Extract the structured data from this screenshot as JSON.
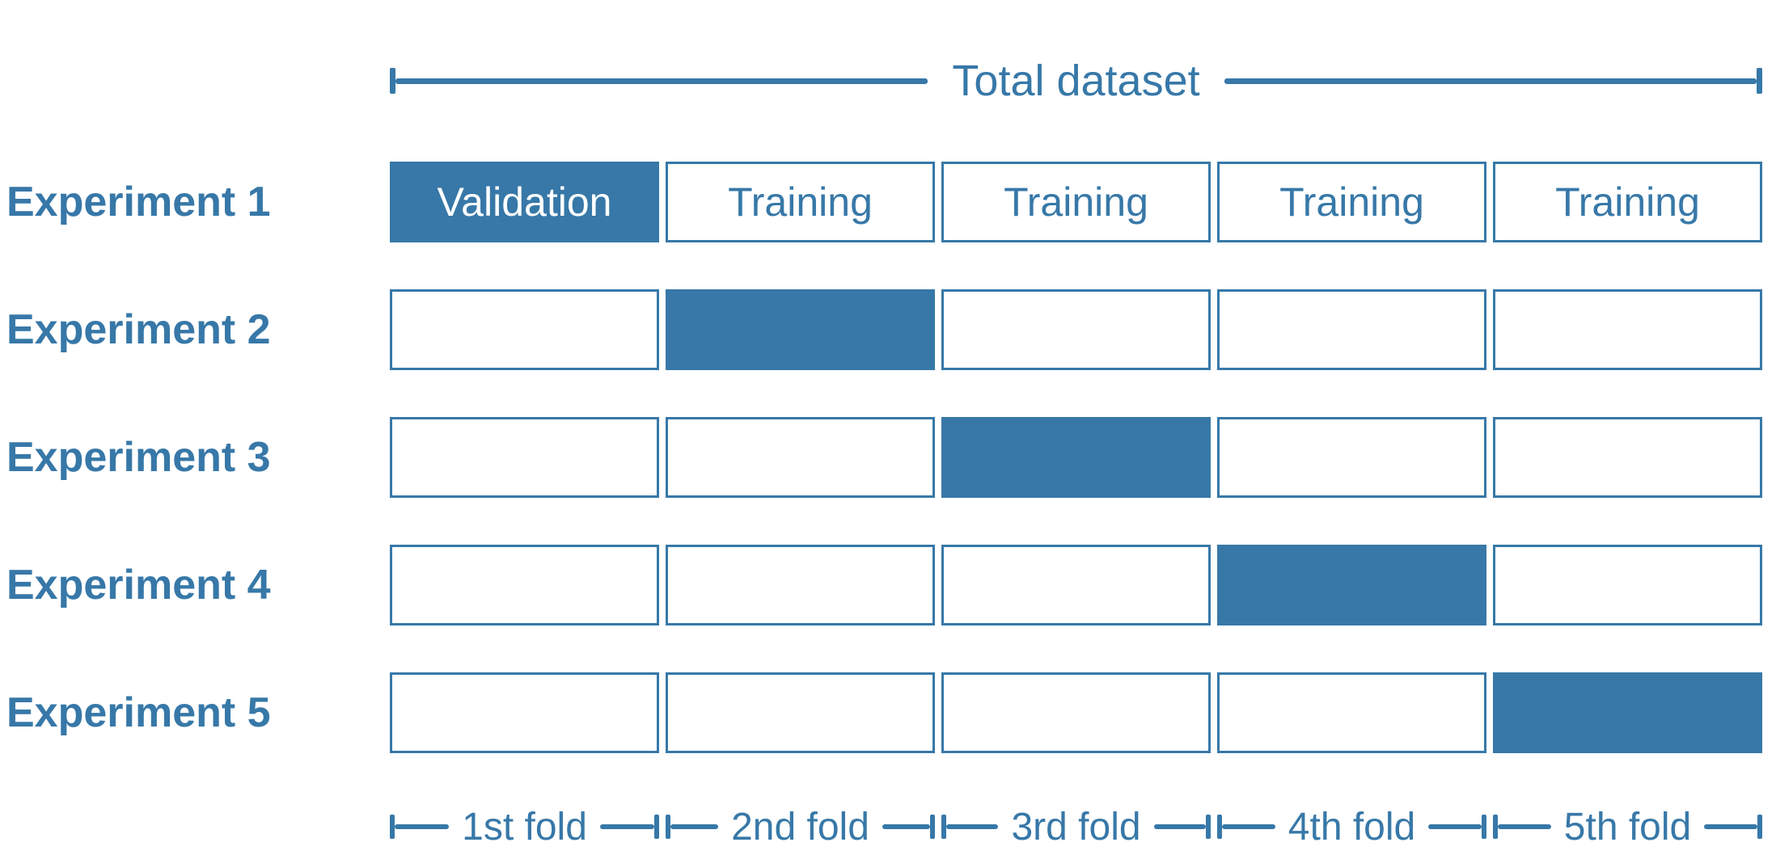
{
  "colors": {
    "accent": "#3778A8",
    "validation_fill": "#3778A8",
    "validation_text": "#FFFFFF",
    "background": "#FFFFFF"
  },
  "header": {
    "total_dataset_label": "Total dataset"
  },
  "experiments": [
    {
      "label": "Experiment 1",
      "cells": [
        {
          "state": "validation",
          "text": "Validation"
        },
        {
          "state": "training",
          "text": "Training"
        },
        {
          "state": "training",
          "text": "Training"
        },
        {
          "state": "training",
          "text": "Training"
        },
        {
          "state": "training",
          "text": "Training"
        }
      ]
    },
    {
      "label": "Experiment 2",
      "cells": [
        {
          "state": "empty",
          "text": ""
        },
        {
          "state": "validation",
          "text": ""
        },
        {
          "state": "empty",
          "text": ""
        },
        {
          "state": "empty",
          "text": ""
        },
        {
          "state": "empty",
          "text": ""
        }
      ]
    },
    {
      "label": "Experiment 3",
      "cells": [
        {
          "state": "empty",
          "text": ""
        },
        {
          "state": "empty",
          "text": ""
        },
        {
          "state": "validation",
          "text": ""
        },
        {
          "state": "empty",
          "text": ""
        },
        {
          "state": "empty",
          "text": ""
        }
      ]
    },
    {
      "label": "Experiment 4",
      "cells": [
        {
          "state": "empty",
          "text": ""
        },
        {
          "state": "empty",
          "text": ""
        },
        {
          "state": "empty",
          "text": ""
        },
        {
          "state": "validation",
          "text": ""
        },
        {
          "state": "empty",
          "text": ""
        }
      ]
    },
    {
      "label": "Experiment 5",
      "cells": [
        {
          "state": "empty",
          "text": ""
        },
        {
          "state": "empty",
          "text": ""
        },
        {
          "state": "empty",
          "text": ""
        },
        {
          "state": "empty",
          "text": ""
        },
        {
          "state": "validation",
          "text": ""
        }
      ]
    }
  ],
  "folds": [
    "1st fold",
    "2nd fold",
    "3rd fold",
    "4th fold",
    "5th fold"
  ]
}
